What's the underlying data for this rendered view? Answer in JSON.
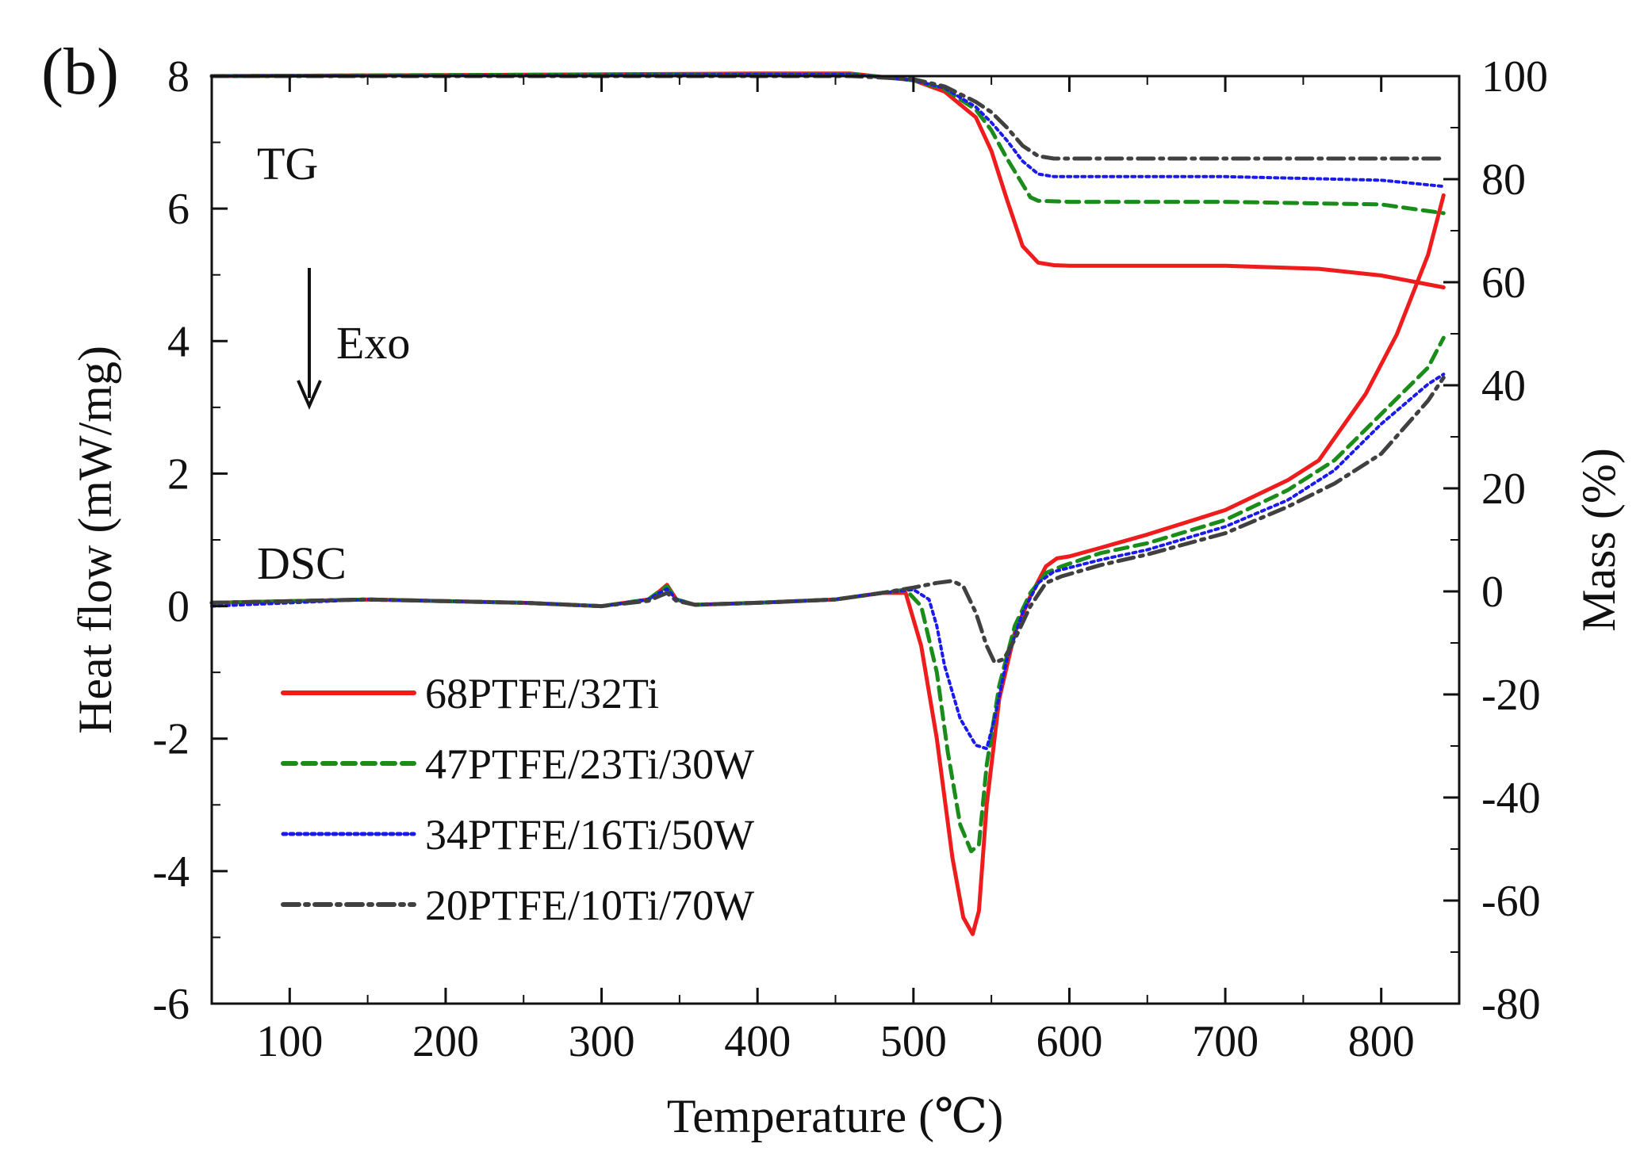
{
  "chart_data": {
    "type": "line",
    "panel_label": "(b)",
    "xlabel": "Temperature (℃)",
    "ylabel": "Heat flow (mW/mg)",
    "ylabel_right": "Mass (%)",
    "xlim": [
      50,
      850
    ],
    "ylim": [
      -6,
      8
    ],
    "ylim_right": [
      -80,
      100
    ],
    "xticks": [
      100,
      200,
      300,
      400,
      500,
      600,
      700,
      800
    ],
    "yticks": [
      -6,
      -4,
      -2,
      0,
      2,
      4,
      6,
      8
    ],
    "yticks_right": [
      -80,
      -60,
      -40,
      -20,
      0,
      20,
      40,
      60,
      80,
      100
    ],
    "annotations": {
      "tg": "TG",
      "dsc": "DSC",
      "exo": "Exo"
    },
    "series": [
      {
        "name": "68PTFE/32Ti",
        "color": "#ee1c1c",
        "dash": "solid",
        "tg": {
          "x": [
            50,
            200,
            400,
            460,
            500,
            520,
            540,
            550,
            560,
            570,
            580,
            590,
            600,
            700,
            760,
            800,
            840
          ],
          "y": [
            100,
            100.2,
            100.5,
            100.5,
            99.2,
            97,
            92,
            85.5,
            76,
            67,
            63.8,
            63.3,
            63.2,
            63.2,
            62.6,
            61.3,
            59
          ]
        },
        "dsc": {
          "x": [
            50,
            150,
            250,
            300,
            330,
            337,
            342,
            348,
            360,
            400,
            450,
            480,
            495,
            505,
            515,
            525,
            532,
            538,
            542,
            547,
            555,
            565,
            575,
            585,
            592,
            600,
            620,
            650,
            700,
            740,
            760,
            790,
            810,
            830,
            840
          ],
          "y": [
            0.05,
            0.1,
            0.05,
            0.0,
            0.1,
            0.22,
            0.32,
            0.1,
            0.02,
            0.05,
            0.1,
            0.2,
            0.2,
            -0.6,
            -2.0,
            -3.8,
            -4.7,
            -4.95,
            -4.6,
            -3.0,
            -1.4,
            -0.4,
            0.15,
            0.6,
            0.72,
            0.75,
            0.88,
            1.08,
            1.45,
            1.9,
            2.2,
            3.2,
            4.1,
            5.3,
            6.2
          ]
        }
      },
      {
        "name": "47PTFE/23Ti/30W",
        "color": "#1a8c1a",
        "dash": "dash",
        "tg": {
          "x": [
            50,
            200,
            400,
            460,
            500,
            520,
            540,
            550,
            560,
            570,
            575,
            580,
            600,
            700,
            800,
            840
          ],
          "y": [
            100,
            100.2,
            100.4,
            100.4,
            99.2,
            97.5,
            93.5,
            89.5,
            84,
            79,
            76.5,
            75.8,
            75.6,
            75.6,
            75.1,
            73.4
          ]
        },
        "dsc": {
          "x": [
            50,
            150,
            250,
            300,
            330,
            337,
            342,
            348,
            360,
            400,
            450,
            480,
            495,
            505,
            515,
            522,
            530,
            537,
            542,
            547,
            555,
            565,
            575,
            585,
            595,
            620,
            650,
            700,
            740,
            770,
            800,
            830,
            840
          ],
          "y": [
            0.05,
            0.1,
            0.05,
            0.0,
            0.1,
            0.22,
            0.3,
            0.1,
            0.02,
            0.05,
            0.1,
            0.2,
            0.25,
            0.0,
            -1.0,
            -2.2,
            -3.3,
            -3.7,
            -3.6,
            -2.4,
            -1.2,
            -0.3,
            0.2,
            0.5,
            0.6,
            0.8,
            0.95,
            1.3,
            1.75,
            2.2,
            2.9,
            3.6,
            4.05
          ]
        }
      },
      {
        "name": "34PTFE/16Ti/50W",
        "color": "#1a1aee",
        "dash": "dot",
        "tg": {
          "x": [
            50,
            200,
            400,
            460,
            500,
            520,
            540,
            550,
            560,
            570,
            580,
            590,
            700,
            800,
            840
          ],
          "y": [
            100,
            100.1,
            100.3,
            100.3,
            99.2,
            97.7,
            94,
            91,
            87.5,
            83.5,
            81,
            80.5,
            80.5,
            79.8,
            78.6
          ]
        },
        "dsc": {
          "x": [
            50,
            150,
            250,
            300,
            330,
            337,
            342,
            348,
            360,
            400,
            450,
            480,
            500,
            510,
            515,
            520,
            530,
            540,
            547,
            552,
            560,
            570,
            580,
            590,
            620,
            650,
            700,
            740,
            770,
            800,
            830,
            840
          ],
          "y": [
            0.0,
            0.1,
            0.05,
            0.0,
            0.1,
            0.2,
            0.26,
            0.1,
            0.02,
            0.05,
            0.1,
            0.2,
            0.25,
            0.1,
            -0.3,
            -0.9,
            -1.7,
            -2.1,
            -2.15,
            -1.7,
            -0.8,
            -0.1,
            0.35,
            0.52,
            0.7,
            0.85,
            1.2,
            1.6,
            2.05,
            2.75,
            3.35,
            3.5
          ]
        }
      },
      {
        "name": "20PTFE/10Ti/70W",
        "color": "#404040",
        "dash": "dashdot",
        "tg": {
          "x": [
            50,
            200,
            400,
            460,
            500,
            520,
            540,
            550,
            560,
            570,
            580,
            590,
            700,
            840
          ],
          "y": [
            100,
            100,
            100,
            100,
            99.4,
            98,
            95,
            93,
            90,
            86.5,
            84.5,
            84,
            84,
            84
          ]
        },
        "dsc": {
          "x": [
            50,
            150,
            250,
            300,
            330,
            337,
            342,
            348,
            360,
            400,
            450,
            480,
            500,
            515,
            525,
            532,
            540,
            547,
            552,
            558,
            565,
            575,
            585,
            595,
            620,
            650,
            700,
            740,
            770,
            800,
            830,
            840
          ],
          "y": [
            0.05,
            0.1,
            0.05,
            0.0,
            0.08,
            0.15,
            0.2,
            0.08,
            0.02,
            0.05,
            0.1,
            0.2,
            0.28,
            0.35,
            0.38,
            0.3,
            -0.1,
            -0.6,
            -0.85,
            -0.8,
            -0.5,
            0.0,
            0.35,
            0.45,
            0.62,
            0.78,
            1.1,
            1.5,
            1.85,
            2.3,
            3.1,
            3.45
          ]
        }
      }
    ]
  }
}
